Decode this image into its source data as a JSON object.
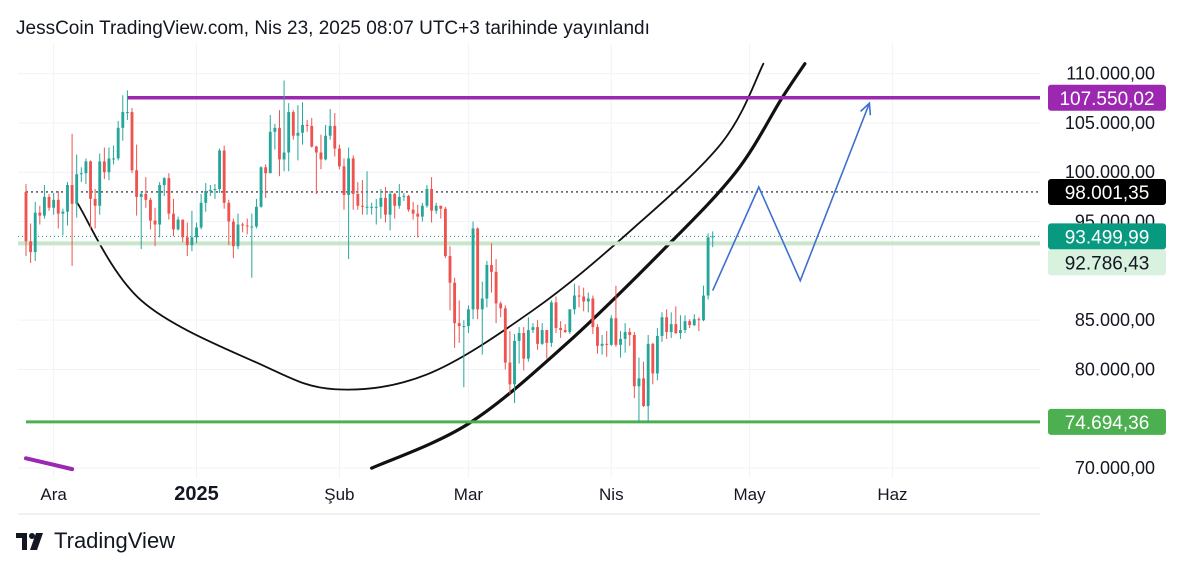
{
  "header": {
    "publish_text": "JessCoin TradingView.com, Nis 23, 2025 08:07 UTC+3 tarihinde yayınlandı"
  },
  "footer": {
    "brand": "TradingView",
    "logo_icon": "tradingview-logo-icon"
  },
  "colors": {
    "up": "#26a69a",
    "down": "#ef5350",
    "resistance": "#9c27b0",
    "support": "#4caf50",
    "projection": "#3f6fd0",
    "current_price_bg": "#089981",
    "black_label_bg": "#000000"
  },
  "chart_data": {
    "type": "candlestick",
    "x_ticks": [
      {
        "label": "Ara",
        "date": "2024-12-01",
        "bold": false
      },
      {
        "label": "2025",
        "date": "2025-01-01",
        "bold": true
      },
      {
        "label": "Şub",
        "date": "2025-02-01",
        "bold": false
      },
      {
        "label": "Mar",
        "date": "2025-03-01",
        "bold": false
      },
      {
        "label": "Nis",
        "date": "2025-04-01",
        "bold": false
      },
      {
        "label": "May",
        "date": "2025-05-01",
        "bold": false
      },
      {
        "label": "Haz",
        "date": "2025-06-01",
        "bold": false
      }
    ],
    "x_range": [
      "2024-11-25",
      "2025-06-20"
    ],
    "y_ticks": [
      "110.000,00",
      "105.000,00",
      "100.000,00",
      "95.000,00",
      "85.000,00",
      "80.000,00",
      "70.000,00"
    ],
    "y_tick_values": [
      110000,
      105000,
      100000,
      95000,
      85000,
      80000,
      70000
    ],
    "ylim": [
      69000,
      113000
    ],
    "price_labels": [
      {
        "text": "107.550,02",
        "value": 107550.02,
        "style": "resistance"
      },
      {
        "text": "98.001,35",
        "value": 98001.35,
        "style": "black"
      },
      {
        "text": "93.499,99",
        "value": 93499.99,
        "style": "current"
      },
      {
        "text": "92.786,43",
        "value": 92786.43,
        "style": "light"
      },
      {
        "text": "74.694,36",
        "value": 74694.36,
        "style": "support"
      }
    ],
    "horizontal_lines": [
      {
        "name": "resistance",
        "value": 107550.02,
        "from": "2024-12-17",
        "to": "2025-06-20"
      },
      {
        "name": "support",
        "value": 74694.36,
        "from": "2024-11-25",
        "to": "2025-06-20"
      },
      {
        "name": "dotted",
        "value": 98001.35,
        "from": "2024-11-25",
        "to": "2025-06-20"
      }
    ],
    "candles": [
      [
        "2024-11-25",
        98000,
        98800,
        91500,
        93000
      ],
      [
        "2024-11-26",
        93000,
        94800,
        90800,
        91900
      ],
      [
        "2024-11-27",
        91900,
        97000,
        91000,
        95900
      ],
      [
        "2024-11-28",
        95900,
        96600,
        94700,
        95600
      ],
      [
        "2024-11-29",
        95600,
        98700,
        95300,
        97500
      ],
      [
        "2024-11-30",
        97500,
        97800,
        96100,
        96400
      ],
      [
        "2024-12-01",
        96400,
        97900,
        95700,
        97200
      ],
      [
        "2024-12-02",
        97200,
        98100,
        94300,
        95800
      ],
      [
        "2024-12-03",
        95800,
        96300,
        93600,
        96000
      ],
      [
        "2024-12-04",
        96000,
        99000,
        94600,
        98700
      ],
      [
        "2024-12-05",
        98700,
        103900,
        90500,
        96800
      ],
      [
        "2024-12-06",
        96800,
        101800,
        95400,
        99800
      ],
      [
        "2024-12-07",
        99800,
        100500,
        99000,
        99900
      ],
      [
        "2024-12-08",
        99900,
        101400,
        98800,
        101100
      ],
      [
        "2024-12-09",
        101100,
        101200,
        94200,
        97300
      ],
      [
        "2024-12-10",
        97300,
        98300,
        94300,
        96600
      ],
      [
        "2024-12-11",
        96600,
        101900,
        95700,
        101100
      ],
      [
        "2024-12-12",
        101100,
        102500,
        99300,
        100000
      ],
      [
        "2024-12-13",
        100000,
        102500,
        99200,
        101400
      ],
      [
        "2024-12-14",
        101400,
        102700,
        100800,
        101400
      ],
      [
        "2024-12-15",
        101400,
        105200,
        101200,
        104500
      ],
      [
        "2024-12-16",
        104500,
        107800,
        103200,
        106100
      ],
      [
        "2024-12-17",
        106100,
        108300,
        105300,
        106100
      ],
      [
        "2024-12-18",
        106100,
        106500,
        99900,
        100200
      ],
      [
        "2024-12-19",
        100200,
        102800,
        95600,
        97500
      ],
      [
        "2024-12-20",
        97500,
        98100,
        92200,
        97800
      ],
      [
        "2024-12-21",
        97800,
        99500,
        96400,
        97200
      ],
      [
        "2024-12-22",
        97200,
        97400,
        94200,
        95100
      ],
      [
        "2024-12-23",
        95100,
        96400,
        92500,
        94700
      ],
      [
        "2024-12-24",
        94700,
        99000,
        93400,
        98700
      ],
      [
        "2024-12-25",
        98700,
        99500,
        97600,
        99400
      ],
      [
        "2024-12-26",
        99400,
        99900,
        95200,
        95800
      ],
      [
        "2024-12-27",
        95800,
        97300,
        93500,
        94200
      ],
      [
        "2024-12-28",
        94200,
        95500,
        94100,
        95200
      ],
      [
        "2024-12-29",
        95200,
        95200,
        92900,
        93400
      ],
      [
        "2024-12-30",
        93400,
        94900,
        91500,
        92600
      ],
      [
        "2024-12-31",
        92600,
        96100,
        92000,
        93400
      ],
      [
        "2025-01-01",
        93400,
        94900,
        92800,
        94400
      ],
      [
        "2025-01-02",
        94400,
        97800,
        94200,
        96900
      ],
      [
        "2025-01-03",
        96900,
        98900,
        96000,
        98100
      ],
      [
        "2025-01-04",
        98100,
        98700,
        97600,
        98200
      ],
      [
        "2025-01-05",
        98200,
        98800,
        97300,
        98300
      ],
      [
        "2025-01-06",
        98300,
        102400,
        97900,
        102200
      ],
      [
        "2025-01-07",
        102200,
        102700,
        96300,
        96900
      ],
      [
        "2025-01-08",
        96900,
        97200,
        92600,
        95000
      ],
      [
        "2025-01-09",
        95000,
        95300,
        91300,
        92500
      ],
      [
        "2025-01-10",
        92500,
        95800,
        92200,
        94700
      ],
      [
        "2025-01-11",
        94700,
        94900,
        93900,
        94600
      ],
      [
        "2025-01-12",
        94600,
        95300,
        93700,
        94500
      ],
      [
        "2025-01-13",
        94500,
        95800,
        89300,
        94500
      ],
      [
        "2025-01-14",
        94500,
        97300,
        94300,
        96500
      ],
      [
        "2025-01-15",
        96500,
        100600,
        96400,
        100500
      ],
      [
        "2025-01-16",
        100500,
        100800,
        97400,
        99900
      ],
      [
        "2025-01-17",
        99900,
        105800,
        99900,
        104100
      ],
      [
        "2025-01-18",
        104100,
        104900,
        102300,
        104500
      ],
      [
        "2025-01-19",
        104500,
        106300,
        99600,
        101300
      ],
      [
        "2025-01-20",
        101300,
        109300,
        100100,
        102000
      ],
      [
        "2025-01-21",
        102000,
        107000,
        100100,
        106100
      ],
      [
        "2025-01-22",
        106100,
        106300,
        103300,
        103700
      ],
      [
        "2025-01-23",
        103700,
        106800,
        101200,
        104000
      ],
      [
        "2025-01-24",
        104000,
        107100,
        102800,
        104800
      ],
      [
        "2025-01-25",
        104800,
        105300,
        104100,
        104700
      ],
      [
        "2025-01-26",
        104700,
        105500,
        102500,
        102600
      ],
      [
        "2025-01-27",
        102600,
        102700,
        97800,
        102000
      ],
      [
        "2025-01-28",
        102000,
        103800,
        100300,
        101300
      ],
      [
        "2025-01-29",
        101300,
        104800,
        101200,
        103700
      ],
      [
        "2025-01-30",
        103700,
        106400,
        103300,
        104700
      ],
      [
        "2025-01-31",
        104700,
        106000,
        101600,
        102400
      ],
      [
        "2025-02-01",
        102400,
        102800,
        100300,
        100600
      ],
      [
        "2025-02-02",
        100600,
        101400,
        96200,
        97700
      ],
      [
        "2025-02-03",
        97700,
        102500,
        91200,
        101400
      ],
      [
        "2025-02-04",
        101400,
        101700,
        96200,
        97800
      ],
      [
        "2025-02-05",
        97800,
        99000,
        96200,
        96600
      ],
      [
        "2025-02-06",
        96600,
        99200,
        95700,
        96500
      ],
      [
        "2025-02-07",
        96500,
        100100,
        95700,
        96500
      ],
      [
        "2025-02-08",
        96500,
        96900,
        95700,
        96500
      ],
      [
        "2025-02-09",
        96500,
        97300,
        94700,
        96500
      ],
      [
        "2025-02-10",
        96500,
        98300,
        95300,
        97400
      ],
      [
        "2025-02-11",
        97400,
        98500,
        94900,
        95700
      ],
      [
        "2025-02-12",
        95700,
        98100,
        94100,
        97800
      ],
      [
        "2025-02-13",
        97800,
        97900,
        95300,
        96600
      ],
      [
        "2025-02-14",
        96600,
        98800,
        96300,
        97500
      ],
      [
        "2025-02-15",
        97500,
        97900,
        97100,
        97600
      ],
      [
        "2025-02-16",
        97600,
        97700,
        96000,
        96200
      ],
      [
        "2025-02-17",
        96200,
        97000,
        95200,
        95800
      ],
      [
        "2025-02-18",
        95800,
        96700,
        93400,
        95500
      ],
      [
        "2025-02-19",
        95500,
        96900,
        95000,
        96600
      ],
      [
        "2025-02-20",
        96600,
        98700,
        96400,
        98300
      ],
      [
        "2025-02-21",
        98300,
        99500,
        94900,
        96100
      ],
      [
        "2025-02-22",
        96100,
        96900,
        95800,
        96600
      ],
      [
        "2025-02-23",
        96600,
        96600,
        95300,
        96300
      ],
      [
        "2025-02-24",
        96300,
        96500,
        91300,
        91500
      ],
      [
        "2025-02-25",
        91500,
        92500,
        86000,
        88800
      ],
      [
        "2025-02-26",
        88800,
        89300,
        82200,
        84700
      ],
      [
        "2025-02-27",
        84700,
        87000,
        82700,
        84400
      ],
      [
        "2025-02-28",
        84400,
        85000,
        78200,
        84400
      ],
      [
        "2025-03-01",
        84400,
        86500,
        83700,
        86100
      ],
      [
        "2025-03-02",
        86100,
        95000,
        85100,
        94300
      ],
      [
        "2025-03-03",
        94300,
        94400,
        85100,
        86100
      ],
      [
        "2025-03-04",
        86100,
        88900,
        81500,
        87200
      ],
      [
        "2025-03-05",
        87200,
        91000,
        86300,
        90600
      ],
      [
        "2025-03-06",
        90600,
        92800,
        87800,
        89900
      ],
      [
        "2025-03-07",
        89900,
        91200,
        84700,
        86700
      ],
      [
        "2025-03-08",
        86700,
        86900,
        85300,
        86200
      ],
      [
        "2025-03-09",
        86200,
        86500,
        80000,
        80700
      ],
      [
        "2025-03-10",
        80700,
        83900,
        77500,
        78500
      ],
      [
        "2025-03-11",
        78500,
        83600,
        76600,
        82900
      ],
      [
        "2025-03-12",
        82900,
        84300,
        80600,
        83700
      ],
      [
        "2025-03-13",
        83700,
        84300,
        79900,
        81100
      ],
      [
        "2025-03-14",
        81100,
        85300,
        80800,
        84000
      ],
      [
        "2025-03-15",
        84000,
        84700,
        83700,
        84300
      ],
      [
        "2025-03-16",
        84300,
        85000,
        82000,
        82600
      ],
      [
        "2025-03-17",
        82600,
        84700,
        82500,
        84000
      ],
      [
        "2025-03-18",
        84000,
        84000,
        81100,
        82700
      ],
      [
        "2025-03-19",
        82700,
        87000,
        82300,
        86800
      ],
      [
        "2025-03-20",
        86800,
        87400,
        83700,
        84200
      ],
      [
        "2025-03-21",
        84200,
        84900,
        83200,
        84000
      ],
      [
        "2025-03-22",
        84000,
        84600,
        83700,
        83800
      ],
      [
        "2025-03-23",
        83800,
        86100,
        83600,
        86100
      ],
      [
        "2025-03-24",
        86100,
        88700,
        85600,
        87500
      ],
      [
        "2025-03-25",
        87500,
        88500,
        86300,
        87400
      ],
      [
        "2025-03-26",
        87400,
        88300,
        85900,
        86900
      ],
      [
        "2025-03-27",
        86900,
        87800,
        85800,
        87200
      ],
      [
        "2025-03-28",
        87200,
        87500,
        83600,
        84300
      ],
      [
        "2025-03-29",
        84300,
        84600,
        81600,
        82400
      ],
      [
        "2025-03-30",
        82400,
        83500,
        81500,
        82600
      ],
      [
        "2025-03-31",
        82600,
        83900,
        81300,
        82500
      ],
      [
        "2025-04-01",
        82500,
        85500,
        82400,
        85200
      ],
      [
        "2025-04-02",
        85200,
        88500,
        82300,
        82500
      ],
      [
        "2025-04-03",
        82500,
        83900,
        81200,
        83100
      ],
      [
        "2025-04-04",
        83100,
        84700,
        81700,
        83800
      ],
      [
        "2025-04-05",
        83800,
        84200,
        82400,
        83500
      ],
      [
        "2025-04-06",
        83500,
        83800,
        77100,
        78300
      ],
      [
        "2025-04-07",
        78300,
        81200,
        74600,
        79100
      ],
      [
        "2025-04-08",
        79100,
        80800,
        76200,
        76300
      ],
      [
        "2025-04-09",
        76300,
        83500,
        74600,
        82600
      ],
      [
        "2025-04-10",
        82600,
        82700,
        78500,
        79600
      ],
      [
        "2025-04-11",
        79600,
        84200,
        78900,
        83400
      ],
      [
        "2025-04-12",
        83400,
        85800,
        82800,
        85300
      ],
      [
        "2025-04-13",
        85300,
        86100,
        83100,
        83800
      ],
      [
        "2025-04-14",
        83800,
        85800,
        83200,
        84600
      ],
      [
        "2025-04-15",
        84600,
        86400,
        83600,
        83700
      ],
      [
        "2025-04-16",
        83700,
        85500,
        83100,
        84000
      ],
      [
        "2025-04-17",
        84000,
        85500,
        83700,
        84900
      ],
      [
        "2025-04-18",
        84900,
        85100,
        84200,
        84500
      ],
      [
        "2025-04-19",
        84500,
        85600,
        84400,
        85100
      ],
      [
        "2025-04-20",
        85100,
        85300,
        83900,
        85000
      ],
      [
        "2025-04-21",
        85000,
        88500,
        84900,
        87500
      ],
      [
        "2025-04-22",
        87500,
        93800,
        87100,
        93400
      ],
      [
        "2025-04-23",
        93400,
        94000,
        92400,
        93500
      ]
    ],
    "curves": [
      {
        "name": "thin-arc",
        "points": [
          [
            "2024-12-06",
            97000
          ],
          [
            "2024-12-20",
            87000
          ],
          [
            "2025-01-15",
            80500
          ],
          [
            "2025-01-31",
            78000
          ],
          [
            "2025-02-20",
            79500
          ],
          [
            "2025-03-15",
            86000
          ],
          [
            "2025-04-05",
            94000
          ],
          [
            "2025-04-25",
            103000
          ],
          [
            "2025-05-04",
            111000
          ]
        ]
      },
      {
        "name": "thick-arc",
        "points": [
          [
            "2025-02-08",
            70000
          ],
          [
            "2025-03-01",
            74500
          ],
          [
            "2025-03-22",
            82500
          ],
          [
            "2025-04-12",
            92000
          ],
          [
            "2025-04-28",
            100000
          ],
          [
            "2025-05-08",
            107500
          ],
          [
            "2025-05-13",
            111000
          ]
        ]
      },
      {
        "name": "purple-diagonal",
        "points": [
          [
            "2024-11-25",
            71000
          ],
          [
            "2024-12-05",
            69900
          ]
        ]
      }
    ],
    "projection": [
      [
        "2025-04-23",
        88000
      ],
      [
        "2025-05-03",
        98500
      ],
      [
        "2025-05-12",
        89000
      ],
      [
        "2025-05-27",
        107000
      ]
    ]
  }
}
